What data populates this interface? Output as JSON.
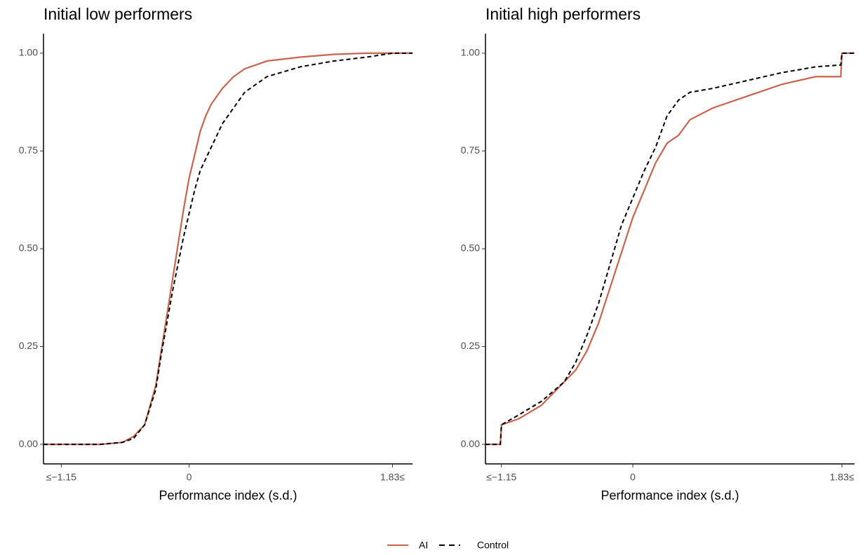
{
  "chart_data": [
    {
      "type": "line",
      "title": "Initial low performers",
      "x_label": "Performance index (s.d.)",
      "x": [
        -1.31,
        -1.15,
        -0.8,
        -0.6,
        -0.5,
        -0.4,
        -0.3,
        -0.25,
        -0.2,
        -0.15,
        -0.1,
        -0.05,
        0,
        0.05,
        0.1,
        0.15,
        0.2,
        0.3,
        0.4,
        0.5,
        0.7,
        1.0,
        1.3,
        1.6,
        1.83,
        2.01
      ],
      "series": [
        {
          "name": "AI",
          "color": "#c8634e",
          "dash": "solid",
          "values": [
            0,
            0,
            0,
            0.005,
            0.02,
            0.05,
            0.15,
            0.24,
            0.33,
            0.42,
            0.51,
            0.6,
            0.68,
            0.74,
            0.8,
            0.84,
            0.87,
            0.91,
            0.94,
            0.96,
            0.98,
            0.99,
            0.997,
            1,
            1,
            1
          ]
        },
        {
          "name": "Control",
          "color": "#000000",
          "dash": "dashed",
          "values": [
            0,
            0,
            0,
            0.005,
            0.015,
            0.05,
            0.14,
            0.23,
            0.31,
            0.39,
            0.46,
            0.53,
            0.59,
            0.65,
            0.7,
            0.73,
            0.76,
            0.82,
            0.86,
            0.9,
            0.94,
            0.965,
            0.98,
            0.99,
            1,
            1
          ]
        }
      ],
      "xlim": [
        -1.31,
        2.01
      ],
      "xticks": [
        {
          "value": -1.15,
          "label": "≤−1.15"
        },
        0,
        {
          "value": 1.83,
          "label": "1.83≤"
        }
      ],
      "ylim": [
        -0.05,
        1.05
      ],
      "yticks": [
        {
          "value": 0,
          "label": "0.00"
        },
        {
          "value": 0.25,
          "label": "0.25"
        },
        {
          "value": 0.5,
          "label": "0.50"
        },
        {
          "value": 0.75,
          "label": "0.75"
        },
        {
          "value": 1,
          "label": "1.00"
        }
      ],
      "grid": false
    },
    {
      "type": "line",
      "title": "Initial high performers",
      "x_label": "Performance index (s.d.)",
      "x": [
        -1.29,
        -1.16,
        -1.15,
        -1.0,
        -0.8,
        -0.6,
        -0.5,
        -0.4,
        -0.3,
        -0.2,
        -0.1,
        0,
        0.1,
        0.2,
        0.3,
        0.4,
        0.5,
        0.7,
        1.0,
        1.3,
        1.6,
        1.82,
        1.83,
        1.94
      ],
      "series": [
        {
          "name": "AI",
          "color": "#c8634e",
          "dash": "solid",
          "values": [
            0,
            0,
            0.05,
            0.065,
            0.1,
            0.16,
            0.19,
            0.24,
            0.31,
            0.4,
            0.49,
            0.58,
            0.65,
            0.72,
            0.77,
            0.79,
            0.83,
            0.86,
            0.89,
            0.92,
            0.94,
            0.94,
            1,
            1
          ]
        },
        {
          "name": "Control",
          "color": "#000000",
          "dash": "dashed",
          "values": [
            0,
            0,
            0.05,
            0.075,
            0.11,
            0.16,
            0.21,
            0.28,
            0.36,
            0.46,
            0.56,
            0.63,
            0.7,
            0.76,
            0.84,
            0.88,
            0.9,
            0.91,
            0.93,
            0.95,
            0.965,
            0.97,
            1,
            1
          ]
        }
      ],
      "xlim": [
        -1.29,
        1.94
      ],
      "xticks": [
        {
          "value": -1.15,
          "label": "≤−1.15"
        },
        0,
        {
          "value": 1.83,
          "label": "1.83≤"
        }
      ],
      "ylim": [
        -0.05,
        1.05
      ],
      "yticks": [
        {
          "value": 0,
          "label": "0.00"
        },
        {
          "value": 0.25,
          "label": "0.25"
        },
        {
          "value": 0.5,
          "label": "0.50"
        },
        {
          "value": 0.75,
          "label": "0.75"
        },
        {
          "value": 1,
          "label": "1.00"
        }
      ],
      "grid": false
    }
  ]
}
